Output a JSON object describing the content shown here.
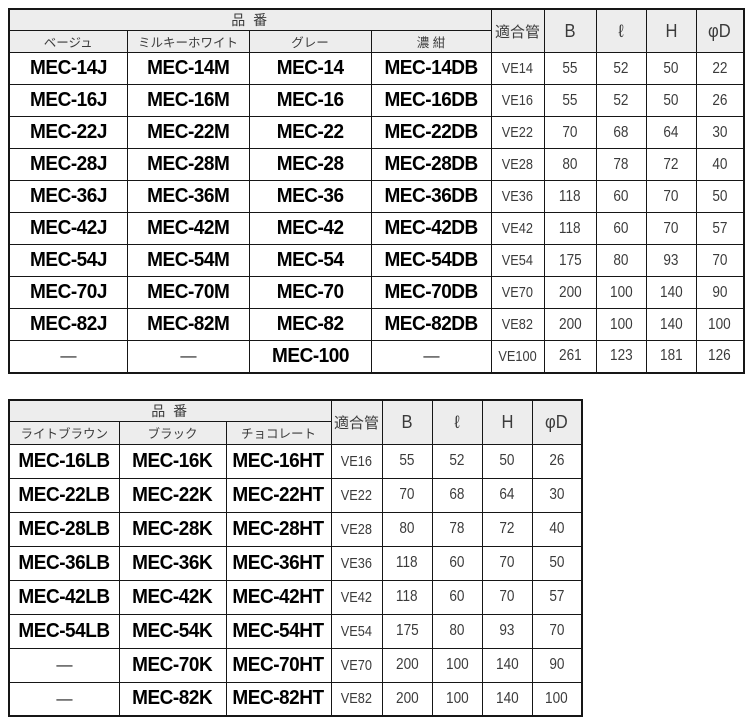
{
  "table1": {
    "part_number_header": "品 番",
    "col_headers": {
      "pipe": "適合管",
      "b": "B",
      "l": "ℓ",
      "h": "H",
      "d": "φD"
    },
    "color_headers": [
      "ベージュ",
      "ミルキーホワイト",
      "グレー",
      "濃 紺"
    ],
    "rows": [
      [
        "MEC-14J",
        "MEC-14M",
        "MEC-14",
        "MEC-14DB",
        "VE14",
        "55",
        "52",
        "50",
        "22"
      ],
      [
        "MEC-16J",
        "MEC-16M",
        "MEC-16",
        "MEC-16DB",
        "VE16",
        "55",
        "52",
        "50",
        "26"
      ],
      [
        "MEC-22J",
        "MEC-22M",
        "MEC-22",
        "MEC-22DB",
        "VE22",
        "70",
        "68",
        "64",
        "30"
      ],
      [
        "MEC-28J",
        "MEC-28M",
        "MEC-28",
        "MEC-28DB",
        "VE28",
        "80",
        "78",
        "72",
        "40"
      ],
      [
        "MEC-36J",
        "MEC-36M",
        "MEC-36",
        "MEC-36DB",
        "VE36",
        "118",
        "60",
        "70",
        "50"
      ],
      [
        "MEC-42J",
        "MEC-42M",
        "MEC-42",
        "MEC-42DB",
        "VE42",
        "118",
        "60",
        "70",
        "57"
      ],
      [
        "MEC-54J",
        "MEC-54M",
        "MEC-54",
        "MEC-54DB",
        "VE54",
        "175",
        "80",
        "93",
        "70"
      ],
      [
        "MEC-70J",
        "MEC-70M",
        "MEC-70",
        "MEC-70DB",
        "VE70",
        "200",
        "100",
        "140",
        "90"
      ],
      [
        "MEC-82J",
        "MEC-82M",
        "MEC-82",
        "MEC-82DB",
        "VE82",
        "200",
        "100",
        "140",
        "100"
      ],
      [
        "—",
        "—",
        "MEC-100",
        "—",
        "VE100",
        "261",
        "123",
        "181",
        "126"
      ]
    ]
  },
  "table2": {
    "part_number_header": "品 番",
    "col_headers": {
      "pipe": "適合管",
      "b": "B",
      "l": "ℓ",
      "h": "H",
      "d": "φD"
    },
    "color_headers": [
      "ライトブラウン",
      "ブラック",
      "チョコレート"
    ],
    "rows": [
      [
        "MEC-16LB",
        "MEC-16K",
        "MEC-16HT",
        "VE16",
        "55",
        "52",
        "50",
        "26"
      ],
      [
        "MEC-22LB",
        "MEC-22K",
        "MEC-22HT",
        "VE22",
        "70",
        "68",
        "64",
        "30"
      ],
      [
        "MEC-28LB",
        "MEC-28K",
        "MEC-28HT",
        "VE28",
        "80",
        "78",
        "72",
        "40"
      ],
      [
        "MEC-36LB",
        "MEC-36K",
        "MEC-36HT",
        "VE36",
        "118",
        "60",
        "70",
        "50"
      ],
      [
        "MEC-42LB",
        "MEC-42K",
        "MEC-42HT",
        "VE42",
        "118",
        "60",
        "70",
        "57"
      ],
      [
        "MEC-54LB",
        "MEC-54K",
        "MEC-54HT",
        "VE54",
        "175",
        "80",
        "93",
        "70"
      ],
      [
        "—",
        "MEC-70K",
        "MEC-70HT",
        "VE70",
        "200",
        "100",
        "140",
        "90"
      ],
      [
        "—",
        "MEC-82K",
        "MEC-82HT",
        "VE82",
        "200",
        "100",
        "140",
        "100"
      ]
    ]
  }
}
